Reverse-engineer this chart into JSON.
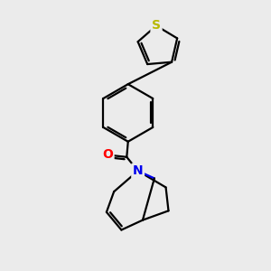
{
  "background_color": "#ebebeb",
  "atom_colors": {
    "S": "#b8b800",
    "O": "#ff0000",
    "N": "#0000ee",
    "C": "#000000"
  },
  "bond_color": "#000000",
  "bond_width": 1.6,
  "figsize": [
    3.0,
    3.0
  ],
  "dpi": 100,
  "xlim": [
    0,
    10
  ],
  "ylim": [
    0,
    10
  ]
}
